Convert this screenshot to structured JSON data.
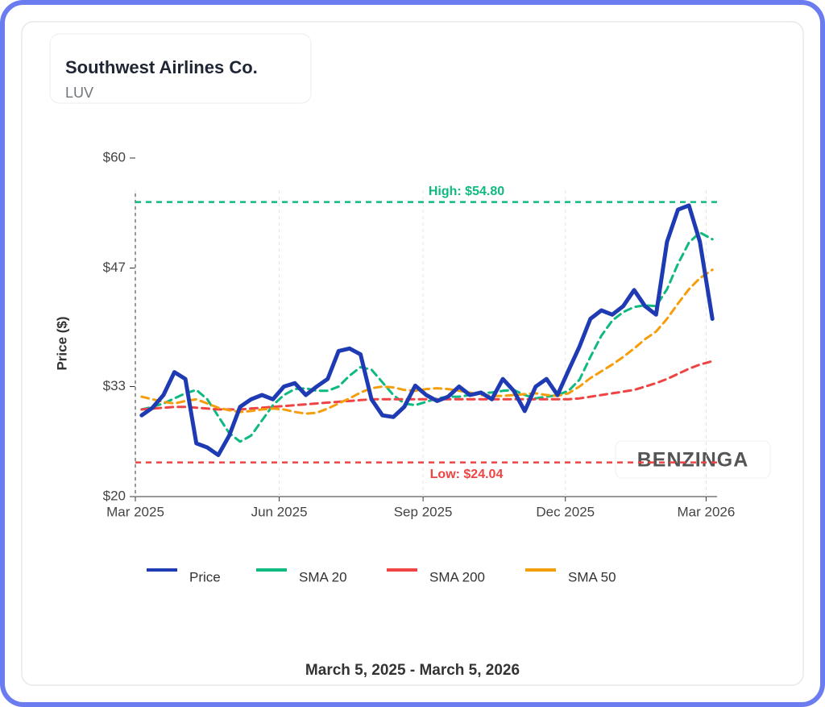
{
  "chart_data": {
    "type": "line",
    "title": "Southwest Airlines Co.",
    "subtitle": "LUV",
    "y_label": "Price ($)",
    "footer": "March 5, 2025 - March 5, 2026",
    "watermark": "BENZINGA",
    "x": [
      "2025-03-05",
      "2025-03-12",
      "2025-03-19",
      "2025-03-26",
      "2025-04-02",
      "2025-04-09",
      "2025-04-16",
      "2025-04-23",
      "2025-04-30",
      "2025-05-07",
      "2025-05-14",
      "2025-05-21",
      "2025-05-28",
      "2025-06-04",
      "2025-06-11",
      "2025-06-18",
      "2025-06-25",
      "2025-07-02",
      "2025-07-09",
      "2025-07-16",
      "2025-07-23",
      "2025-07-30",
      "2025-08-06",
      "2025-08-13",
      "2025-08-20",
      "2025-08-27",
      "2025-09-03",
      "2025-09-10",
      "2025-09-17",
      "2025-09-24",
      "2025-10-01",
      "2025-10-08",
      "2025-10-15",
      "2025-10-22",
      "2025-10-29",
      "2025-11-05",
      "2025-11-12",
      "2025-11-19",
      "2025-11-26",
      "2025-12-03",
      "2025-12-10",
      "2025-12-17",
      "2025-12-24",
      "2025-12-31",
      "2026-01-07",
      "2026-01-14",
      "2026-01-21",
      "2026-01-28",
      "2026-02-04",
      "2026-02-11",
      "2026-02-18",
      "2026-02-25",
      "2026-03-05"
    ],
    "series": [
      {
        "name": "Price",
        "color": "#1f3bb3",
        "dash": false,
        "width": 5,
        "values": [
          29.6,
          30.5,
          32,
          34.7,
          33.9,
          26.3,
          25.8,
          24.9,
          27.2,
          30.6,
          31.5,
          32,
          31.5,
          33,
          33.4,
          32,
          33,
          33.9,
          37.2,
          37.5,
          36.8,
          31.5,
          29.6,
          29.4,
          30.6,
          33.1,
          32,
          31.3,
          31.8,
          33,
          32,
          32.3,
          31.5,
          33.9,
          32.5,
          30.1,
          33,
          33.9,
          32,
          34.9,
          37.7,
          41,
          42,
          41.5,
          42.5,
          44.4,
          42.5,
          41.5,
          50.1,
          53.9,
          54.4,
          50.1,
          41
        ]
      },
      {
        "name": "SMA 20",
        "color": "#10b981",
        "dash": true,
        "width": 3,
        "values": [
          30.3,
          30.6,
          31,
          31.6,
          32.2,
          32.6,
          31.5,
          29.5,
          27.5,
          26.5,
          27.2,
          29,
          30.8,
          32,
          32.7,
          32.8,
          32.5,
          32.5,
          33,
          34.3,
          35.3,
          35,
          33.5,
          32,
          31,
          30.8,
          31.2,
          31.6,
          31.8,
          31.8,
          32,
          32.2,
          32.3,
          32.5,
          32.6,
          32,
          31.6,
          31.8,
          32,
          32.5,
          33.8,
          36.5,
          39,
          40.8,
          41.8,
          42.4,
          42.6,
          42.5,
          44.5,
          47.5,
          50,
          51.2,
          50.4
        ]
      },
      {
        "name": "SMA 200",
        "color": "#ef4444",
        "dash": true,
        "width": 3,
        "values": [
          30.3,
          30.4,
          30.5,
          30.6,
          30.6,
          30.5,
          30.4,
          30.3,
          30.3,
          30.3,
          30.4,
          30.5,
          30.6,
          30.7,
          30.8,
          30.9,
          31,
          31.1,
          31.2,
          31.3,
          31.4,
          31.5,
          31.5,
          31.5,
          31.5,
          31.5,
          31.5,
          31.5,
          31.5,
          31.5,
          31.5,
          31.5,
          31.5,
          31.5,
          31.5,
          31.5,
          31.5,
          31.5,
          31.5,
          31.5,
          31.6,
          31.8,
          32,
          32.2,
          32.4,
          32.6,
          33,
          33.4,
          33.9,
          34.5,
          35.1,
          35.6,
          36
        ]
      },
      {
        "name": "SMA 50",
        "color": "#f59e0b",
        "dash": true,
        "width": 3,
        "values": [
          31.8,
          31.5,
          31.2,
          31,
          31.3,
          31.5,
          31,
          30.5,
          30.2,
          30,
          30.1,
          30.3,
          30.4,
          30.3,
          30,
          29.8,
          29.9,
          30.4,
          31,
          31.6,
          32.3,
          32.8,
          33,
          32.9,
          32.6,
          32.5,
          32.7,
          32.8,
          32.7,
          32.5,
          32.3,
          32,
          31.9,
          31.9,
          32,
          32.1,
          32.2,
          32,
          31.9,
          32.2,
          33,
          34,
          34.8,
          35.6,
          36.5,
          37.5,
          38.6,
          39.5,
          41,
          42.8,
          44.5,
          45.8,
          46.8
        ]
      }
    ],
    "reference_lines": [
      {
        "label": "High: $54.80",
        "value": 54.8,
        "color": "#10b981"
      },
      {
        "label": "Low: $24.04",
        "value": 24.04,
        "color": "#ef4444"
      }
    ],
    "xlim": [
      "2025-03-01",
      "2026-03-08"
    ],
    "xticks": [
      {
        "value": "2025-03-01",
        "label": "Mar 2025"
      },
      {
        "value": "2025-06-01",
        "label": "Jun 2025"
      },
      {
        "value": "2025-09-01",
        "label": "Sep 2025"
      },
      {
        "value": "2025-12-01",
        "label": "Dec 2025"
      },
      {
        "value": "2026-03-01",
        "label": "Mar 2026"
      }
    ],
    "ylim": [
      20,
      60
    ],
    "yticks": [
      {
        "value": 20,
        "label": "$20"
      },
      {
        "value": 33,
        "label": "$33"
      },
      {
        "value": 47,
        "label": "$47"
      },
      {
        "value": 60,
        "label": "$60"
      }
    ],
    "grid": true
  }
}
